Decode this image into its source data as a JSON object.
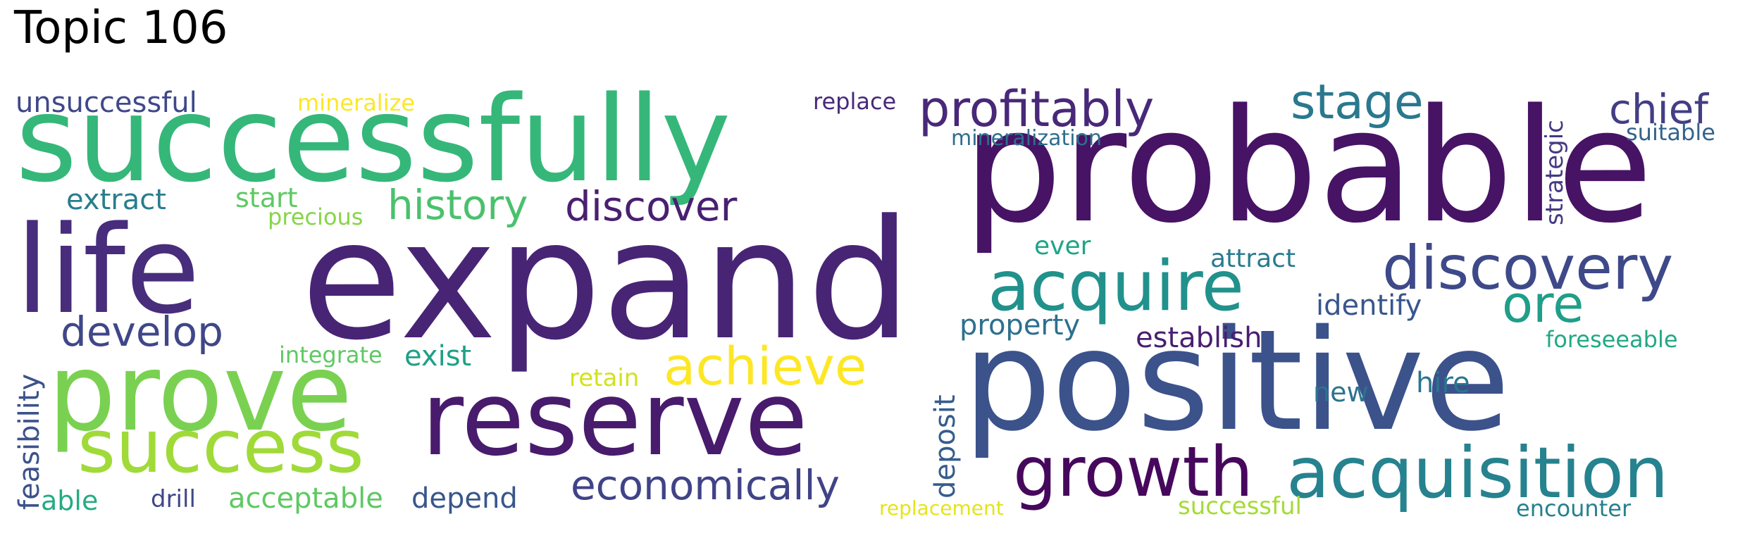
{
  "title": "Topic 106",
  "words": [
    {
      "text": "expand",
      "color": "#482475"
    },
    {
      "text": "probable",
      "color": "#471365"
    },
    {
      "text": "positive",
      "color": "#3b528b"
    },
    {
      "text": "successfully",
      "color": "#35b779"
    },
    {
      "text": "life",
      "color": "#472d7b"
    },
    {
      "text": "reserve",
      "color": "#481b6d"
    },
    {
      "text": "prove",
      "color": "#7ad151"
    },
    {
      "text": "success",
      "color": "#a0da39"
    },
    {
      "text": "acquisition",
      "color": "#26828e"
    },
    {
      "text": "growth",
      "color": "#46085c"
    },
    {
      "text": "acquire",
      "color": "#21918c"
    },
    {
      "text": "discovery",
      "color": "#3e4989"
    },
    {
      "text": "profitably",
      "color": "#482878"
    },
    {
      "text": "achieve",
      "color": "#fde725"
    },
    {
      "text": "ore",
      "color": "#1f9e89"
    },
    {
      "text": "stage",
      "color": "#2a788e"
    },
    {
      "text": "economically",
      "color": "#404387"
    },
    {
      "text": "history",
      "color": "#4ac16d"
    },
    {
      "text": "discover",
      "color": "#482071"
    },
    {
      "text": "develop",
      "color": "#3f4788"
    },
    {
      "text": "chief",
      "color": "#433e85"
    },
    {
      "text": "unsuccessful",
      "color": "#3f4889"
    },
    {
      "text": "mineralize",
      "color": "#fde725"
    },
    {
      "text": "replace",
      "color": "#482979"
    },
    {
      "text": "mineralization",
      "color": "#2e6f8e"
    },
    {
      "text": "suitable",
      "color": "#33638d"
    },
    {
      "text": "strategic",
      "color": "#443a83"
    },
    {
      "text": "extract",
      "color": "#287d8e"
    },
    {
      "text": "start",
      "color": "#5ec962"
    },
    {
      "text": "precious",
      "color": "#86d549"
    },
    {
      "text": "ever",
      "color": "#20a486"
    },
    {
      "text": "attract",
      "color": "#297b8e"
    },
    {
      "text": "identify",
      "color": "#39568c"
    },
    {
      "text": "property",
      "color": "#2d708e"
    },
    {
      "text": "establish",
      "color": "#481f70"
    },
    {
      "text": "foreseeable",
      "color": "#22a884"
    },
    {
      "text": "integrate",
      "color": "#5ec962"
    },
    {
      "text": "exist",
      "color": "#1fa088"
    },
    {
      "text": "feasibility",
      "color": "#3b528b"
    },
    {
      "text": "retain",
      "color": "#d2e21b"
    },
    {
      "text": "deposit",
      "color": "#365c8d"
    },
    {
      "text": "new",
      "color": "#2c738e"
    },
    {
      "text": "hire",
      "color": "#2a768e"
    },
    {
      "text": "able",
      "color": "#25ab82"
    },
    {
      "text": "drill",
      "color": "#3f4788"
    },
    {
      "text": "acceptable",
      "color": "#5ec962"
    },
    {
      "text": "depend",
      "color": "#39568c"
    },
    {
      "text": "replacement",
      "color": "#e5e419"
    },
    {
      "text": "successful",
      "color": "#a5db36"
    },
    {
      "text": "encounter",
      "color": "#26818e"
    }
  ]
}
